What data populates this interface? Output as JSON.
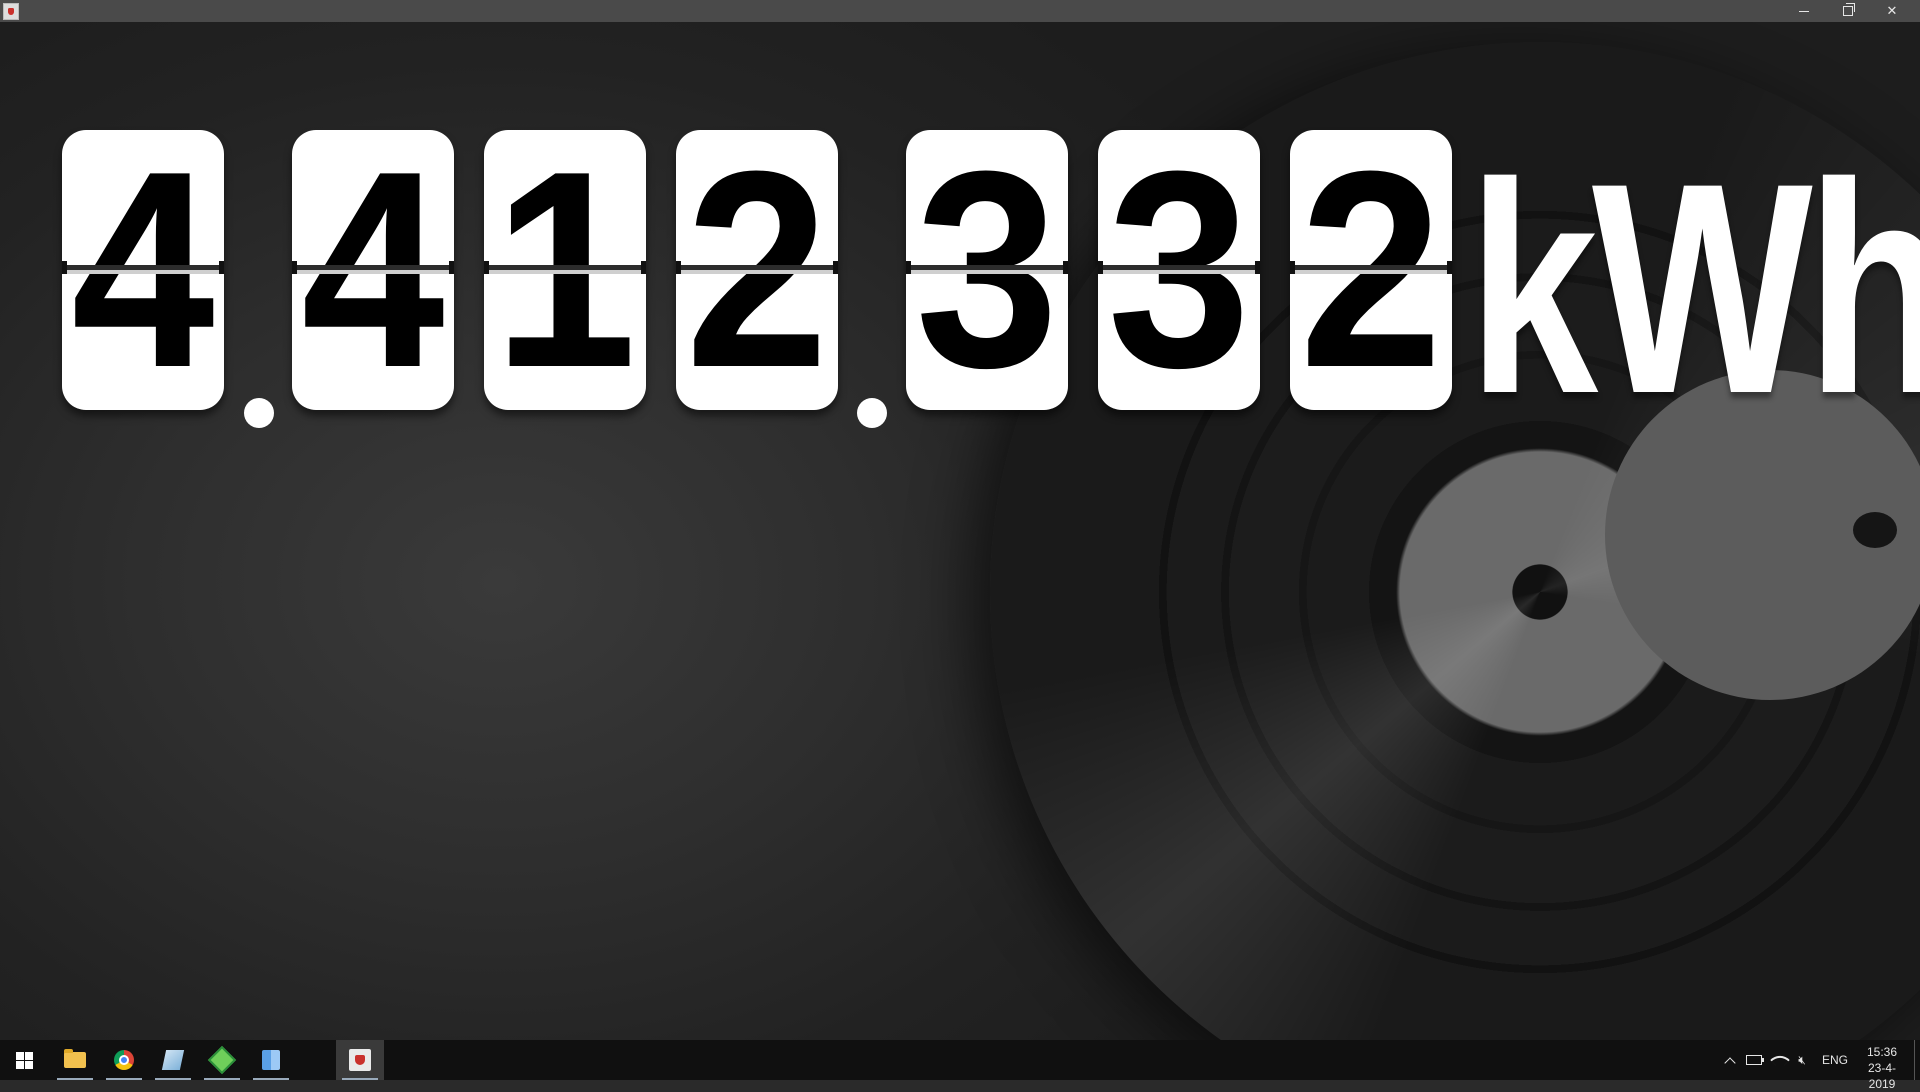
{
  "window": {
    "controls": {
      "minimize": "minimize",
      "maximize": "restore",
      "close": "✕"
    }
  },
  "counter": {
    "digits": [
      "4",
      "4",
      "1",
      "2",
      "3",
      "3",
      "2"
    ],
    "separator": ".",
    "unit": "kWh",
    "reading": "4.412.332"
  },
  "taskbar": {
    "pinned": [
      {
        "icon": "windows-start-icon"
      },
      {
        "icon": "file-explorer-icon"
      },
      {
        "icon": "chrome-icon"
      },
      {
        "icon": "notepad-icon"
      },
      {
        "icon": "green-gem-app-icon"
      },
      {
        "icon": "blue-cube-app-icon"
      },
      {
        "icon": "java-app-icon",
        "active": true
      }
    ],
    "tray": {
      "language": "ENG",
      "time": "15:36",
      "date": "23-4-2019"
    }
  },
  "colors": {
    "titlebar": "#4a4a4a",
    "taskbar": "#101010",
    "flip_card": "#ffffff",
    "digit": "#000000"
  }
}
